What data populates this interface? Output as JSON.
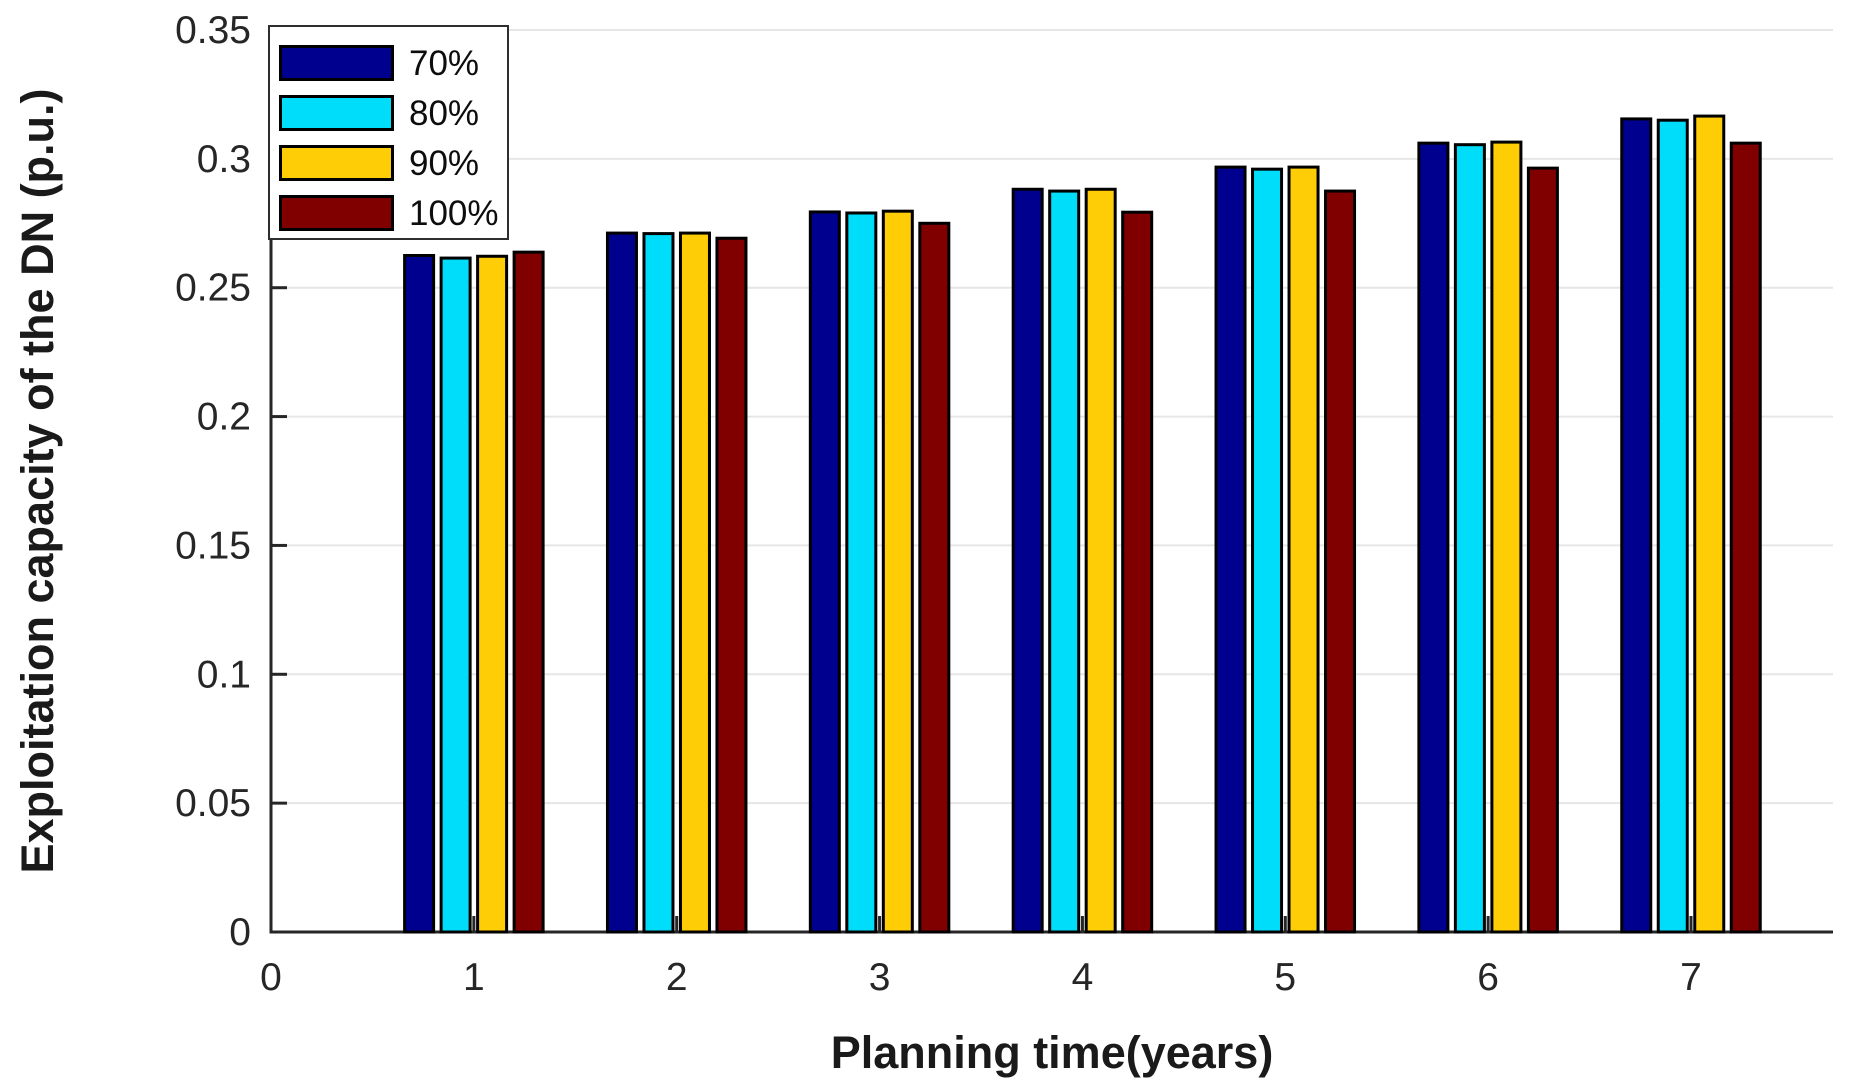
{
  "chart_data": {
    "type": "bar",
    "title": "",
    "xlabel": "Planning time(years)",
    "ylabel": "Exploitation capacity of the DN (p.u.)",
    "categories": [
      1,
      2,
      3,
      4,
      5,
      6,
      7
    ],
    "series": [
      {
        "name": "70%",
        "color": "#00008F",
        "values": [
          0.2625,
          0.2712,
          0.2794,
          0.2882,
          0.2968,
          0.3061,
          0.3155
        ]
      },
      {
        "name": "80%",
        "color": "#00DDFA",
        "values": [
          0.2615,
          0.271,
          0.279,
          0.2875,
          0.296,
          0.3055,
          0.315
        ]
      },
      {
        "name": "90%",
        "color": "#FFCD05",
        "values": [
          0.2622,
          0.2712,
          0.2797,
          0.2882,
          0.2968,
          0.3065,
          0.3166
        ]
      },
      {
        "name": "100%",
        "color": "#800000",
        "values": [
          0.2638,
          0.2692,
          0.275,
          0.2793,
          0.2875,
          0.2964,
          0.3061
        ]
      }
    ],
    "xlim": [
      0,
      7.7
    ],
    "ylim": [
      0,
      0.35
    ],
    "xticks": [
      {
        "value": 0,
        "label": "0"
      },
      {
        "value": 1,
        "label": "1"
      },
      {
        "value": 2,
        "label": "2"
      },
      {
        "value": 3,
        "label": "3"
      },
      {
        "value": 4,
        "label": "4"
      },
      {
        "value": 5,
        "label": "5"
      },
      {
        "value": 6,
        "label": "6"
      },
      {
        "value": 7,
        "label": "7"
      }
    ],
    "yticks": [
      {
        "value": 0,
        "label": "0"
      },
      {
        "value": 0.05,
        "label": "0.05"
      },
      {
        "value": 0.1,
        "label": "0.1"
      },
      {
        "value": 0.15,
        "label": "0.15"
      },
      {
        "value": 0.2,
        "label": "0.2"
      },
      {
        "value": 0.25,
        "label": "0.25"
      },
      {
        "value": 0.3,
        "label": "0.3"
      },
      {
        "value": 0.35,
        "label": "0.35"
      }
    ],
    "grid": "horizontal",
    "legend_position": "top-left"
  },
  "style": {
    "background": "#FFFFFF",
    "axis_color": "#262626",
    "grid_color": "#E6E6E6",
    "tick_label_color": "#262626",
    "label_color": "#1A1A1A",
    "bar_edge_color": "#000000",
    "legend_border_color": "#2E2E2E"
  }
}
